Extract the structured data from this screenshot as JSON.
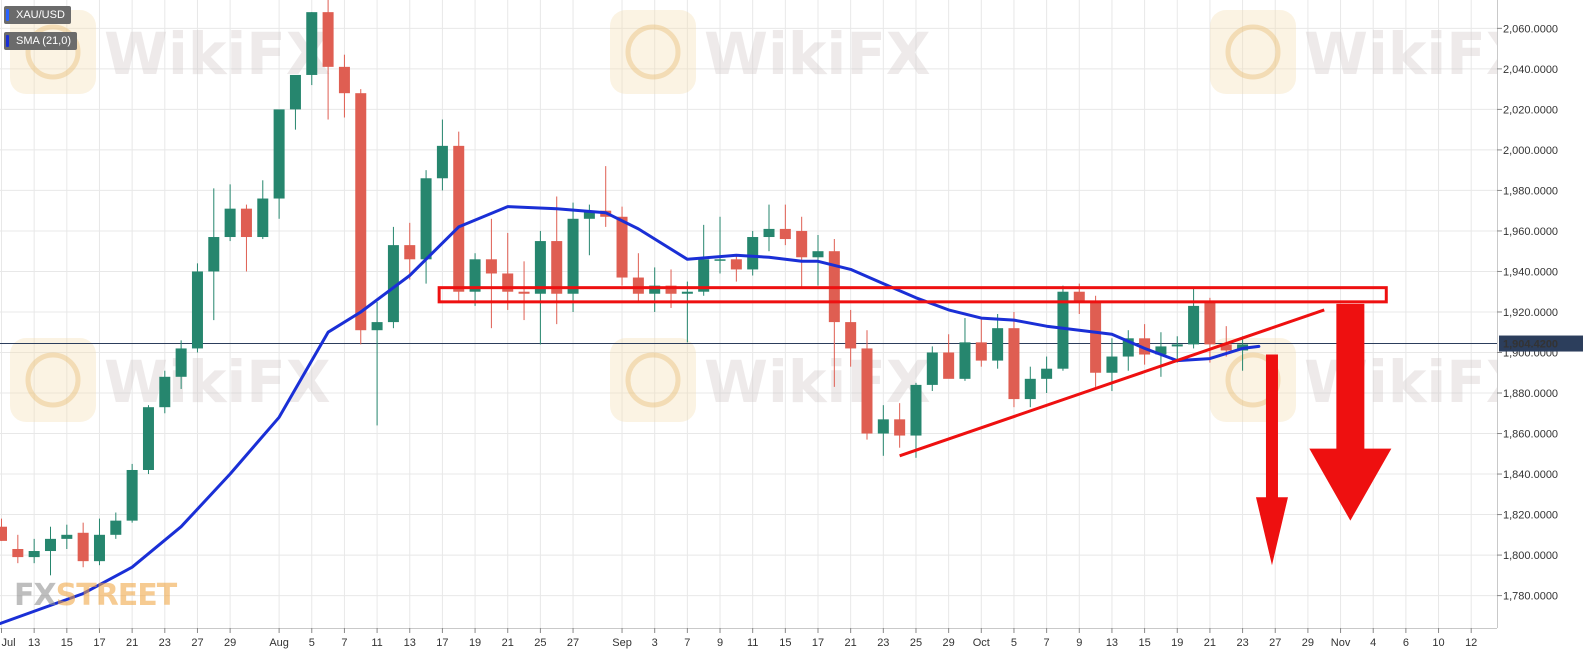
{
  "legend": {
    "symbol": "XAU/USD",
    "indicator": "SMA (21,0)",
    "symbol_color": "#2962ff",
    "indicator_color": "#1a2fd6"
  },
  "watermark": {
    "text": "WikiFX"
  },
  "brand": {
    "part1": "FX",
    "part2": "STREET"
  },
  "colors": {
    "up": "#26866e",
    "down": "#df5e52",
    "sma": "#1a2fd6",
    "annotation": "#ee1010",
    "grid": "#e8e8e8",
    "price_tag": "#2c3e5c"
  },
  "chart_data": {
    "type": "candlestick",
    "symbol": "XAU/USD",
    "ylim": [
      1764,
      2074
    ],
    "y_ticks": [
      "2,060.0000",
      "2,040.0000",
      "2,020.0000",
      "2,000.0000",
      "1,980.0000",
      "1,960.0000",
      "1,940.0000",
      "1,920.0000",
      "1,900.0000",
      "1,880.0000",
      "1,860.0000",
      "1,840.0000",
      "1,820.0000",
      "1,800.0000",
      "1,780.0000"
    ],
    "y_tick_values": [
      2060,
      2040,
      2020,
      2000,
      1980,
      1960,
      1940,
      1920,
      1900,
      1880,
      1860,
      1840,
      1820,
      1800,
      1780
    ],
    "x_tick_labels": [
      "Jul",
      "13",
      "15",
      "17",
      "21",
      "23",
      "27",
      "29",
      "Aug",
      "5",
      "7",
      "11",
      "13",
      "17",
      "19",
      "21",
      "25",
      "27",
      "Sep",
      "3",
      "7",
      "9",
      "11",
      "15",
      "17",
      "21",
      "23",
      "25",
      "29",
      "Oct",
      "5",
      "7",
      "9",
      "13",
      "15",
      "19",
      "21",
      "23",
      "27",
      "29",
      "Nov",
      "4",
      "6",
      "10",
      "12"
    ],
    "x_tick_slots": [
      0,
      2,
      4,
      6,
      8,
      10,
      12,
      14,
      17,
      19,
      21,
      23,
      25,
      27,
      29,
      31,
      33,
      35,
      38,
      40,
      42,
      44,
      46,
      48,
      50,
      52,
      54,
      56,
      58,
      60,
      62,
      64,
      66,
      68,
      70,
      72,
      74,
      76,
      78,
      80,
      82,
      84,
      86,
      88,
      90
    ],
    "last_price": 1904.42,
    "last_price_label": "1,904.4200",
    "candles": [
      {
        "o": 1814,
        "h": 1818,
        "l": 1807,
        "c": 1807
      },
      {
        "o": 1803,
        "h": 1810,
        "l": 1796,
        "c": 1799
      },
      {
        "o": 1799,
        "h": 1808,
        "l": 1796,
        "c": 1802
      },
      {
        "o": 1802,
        "h": 1814,
        "l": 1790,
        "c": 1808
      },
      {
        "o": 1808,
        "h": 1815,
        "l": 1803,
        "c": 1810
      },
      {
        "o": 1811,
        "h": 1816,
        "l": 1794,
        "c": 1797
      },
      {
        "o": 1797,
        "h": 1818,
        "l": 1795,
        "c": 1810
      },
      {
        "o": 1810,
        "h": 1821,
        "l": 1808,
        "c": 1817
      },
      {
        "o": 1817,
        "h": 1845,
        "l": 1816,
        "c": 1842
      },
      {
        "o": 1842,
        "h": 1874,
        "l": 1840,
        "c": 1873
      },
      {
        "o": 1873,
        "h": 1891,
        "l": 1870,
        "c": 1888
      },
      {
        "o": 1888,
        "h": 1906,
        "l": 1882,
        "c": 1902
      },
      {
        "o": 1902,
        "h": 1944,
        "l": 1900,
        "c": 1940
      },
      {
        "o": 1940,
        "h": 1981,
        "l": 1916,
        "c": 1957
      },
      {
        "o": 1957,
        "h": 1983,
        "l": 1955,
        "c": 1971
      },
      {
        "o": 1971,
        "h": 1973,
        "l": 1940,
        "c": 1957
      },
      {
        "o": 1957,
        "h": 1985,
        "l": 1956,
        "c": 1976
      },
      {
        "o": 1976,
        "h": 2019,
        "l": 1966,
        "c": 2020
      },
      {
        "o": 2020,
        "h": 2036,
        "l": 2010,
        "c": 2037
      },
      {
        "o": 2037,
        "h": 2068,
        "l": 2032,
        "c": 2068
      },
      {
        "o": 2068,
        "h": 2075,
        "l": 2015,
        "c": 2041
      },
      {
        "o": 2041,
        "h": 2047,
        "l": 2016,
        "c": 2028
      },
      {
        "o": 2028,
        "h": 2030,
        "l": 1904,
        "c": 1911
      },
      {
        "o": 1911,
        "h": 1925,
        "l": 1864,
        "c": 1915
      },
      {
        "o": 1915,
        "h": 1962,
        "l": 1912,
        "c": 1953
      },
      {
        "o": 1953,
        "h": 1964,
        "l": 1936,
        "c": 1946
      },
      {
        "o": 1946,
        "h": 1990,
        "l": 1934,
        "c": 1986
      },
      {
        "o": 1986,
        "h": 2015,
        "l": 1980,
        "c": 2002
      },
      {
        "o": 2002,
        "h": 2009,
        "l": 1925,
        "c": 1930
      },
      {
        "o": 1930,
        "h": 1949,
        "l": 1923,
        "c": 1946
      },
      {
        "o": 1946,
        "h": 1966,
        "l": 1912,
        "c": 1939
      },
      {
        "o": 1939,
        "h": 1959,
        "l": 1921,
        "c": 1930
      },
      {
        "o": 1930,
        "h": 1945,
        "l": 1916,
        "c": 1929
      },
      {
        "o": 1929,
        "h": 1960,
        "l": 1904,
        "c": 1955
      },
      {
        "o": 1955,
        "h": 1977,
        "l": 1914,
        "c": 1929
      },
      {
        "o": 1929,
        "h": 1974,
        "l": 1920,
        "c": 1966
      },
      {
        "o": 1966,
        "h": 1973,
        "l": 1948,
        "c": 1970
      },
      {
        "o": 1970,
        "h": 1992,
        "l": 1962,
        "c": 1967
      },
      {
        "o": 1967,
        "h": 1972,
        "l": 1933,
        "c": 1937
      },
      {
        "o": 1937,
        "h": 1949,
        "l": 1925,
        "c": 1929
      },
      {
        "o": 1929,
        "h": 1942,
        "l": 1920,
        "c": 1933
      },
      {
        "o": 1933,
        "h": 1941,
        "l": 1922,
        "c": 1929
      },
      {
        "o": 1929,
        "h": 1935,
        "l": 1905,
        "c": 1930
      },
      {
        "o": 1930,
        "h": 1963,
        "l": 1928,
        "c": 1946
      },
      {
        "o": 1946,
        "h": 1967,
        "l": 1939,
        "c": 1946
      },
      {
        "o": 1946,
        "h": 1948,
        "l": 1935,
        "c": 1941
      },
      {
        "o": 1941,
        "h": 1960,
        "l": 1938,
        "c": 1957
      },
      {
        "o": 1957,
        "h": 1973,
        "l": 1950,
        "c": 1961
      },
      {
        "o": 1961,
        "h": 1973,
        "l": 1953,
        "c": 1956
      },
      {
        "o": 1960,
        "h": 1967,
        "l": 1932,
        "c": 1947
      },
      {
        "o": 1947,
        "h": 1958,
        "l": 1933,
        "c": 1950
      },
      {
        "o": 1950,
        "h": 1956,
        "l": 1883,
        "c": 1915
      },
      {
        "o": 1915,
        "h": 1921,
        "l": 1893,
        "c": 1902
      },
      {
        "o": 1902,
        "h": 1911,
        "l": 1857,
        "c": 1860
      },
      {
        "o": 1860,
        "h": 1874,
        "l": 1849,
        "c": 1867
      },
      {
        "o": 1867,
        "h": 1875,
        "l": 1853,
        "c": 1859
      },
      {
        "o": 1859,
        "h": 1885,
        "l": 1848,
        "c": 1884
      },
      {
        "o": 1884,
        "h": 1903,
        "l": 1881,
        "c": 1900
      },
      {
        "o": 1900,
        "h": 1909,
        "l": 1888,
        "c": 1887
      },
      {
        "o": 1887,
        "h": 1917,
        "l": 1886,
        "c": 1905
      },
      {
        "o": 1905,
        "h": 1917,
        "l": 1893,
        "c": 1896
      },
      {
        "o": 1896,
        "h": 1919,
        "l": 1892,
        "c": 1912
      },
      {
        "o": 1912,
        "h": 1920,
        "l": 1873,
        "c": 1877
      },
      {
        "o": 1877,
        "h": 1893,
        "l": 1873,
        "c": 1887
      },
      {
        "o": 1887,
        "h": 1898,
        "l": 1880,
        "c": 1892
      },
      {
        "o": 1892,
        "h": 1933,
        "l": 1891,
        "c": 1930
      },
      {
        "o": 1930,
        "h": 1934,
        "l": 1919,
        "c": 1925
      },
      {
        "o": 1925,
        "h": 1928,
        "l": 1883,
        "c": 1890
      },
      {
        "o": 1890,
        "h": 1907,
        "l": 1881,
        "c": 1898
      },
      {
        "o": 1898,
        "h": 1911,
        "l": 1891,
        "c": 1907
      },
      {
        "o": 1907,
        "h": 1914,
        "l": 1894,
        "c": 1899
      },
      {
        "o": 1899,
        "h": 1910,
        "l": 1888,
        "c": 1903
      },
      {
        "o": 1903,
        "h": 1908,
        "l": 1895,
        "c": 1904
      },
      {
        "o": 1904,
        "h": 1932,
        "l": 1902,
        "c": 1923
      },
      {
        "o": 1925,
        "h": 1927,
        "l": 1895,
        "c": 1904
      },
      {
        "o": 1904,
        "h": 1913,
        "l": 1898,
        "c": 1901
      },
      {
        "o": 1901,
        "h": 1908,
        "l": 1891,
        "c": 1904
      }
    ],
    "sma": [
      [
        -0.5,
        1765
      ],
      [
        5,
        1781
      ],
      [
        8,
        1794
      ],
      [
        11,
        1814
      ],
      [
        14,
        1840
      ],
      [
        17,
        1868
      ],
      [
        20,
        1910
      ],
      [
        22,
        1920
      ],
      [
        25,
        1938
      ],
      [
        28,
        1962
      ],
      [
        31,
        1972
      ],
      [
        34,
        1971
      ],
      [
        37,
        1969
      ],
      [
        39,
        1961
      ],
      [
        42,
        1946
      ],
      [
        45,
        1948
      ],
      [
        47,
        1947
      ],
      [
        49,
        1945
      ],
      [
        50,
        1945
      ],
      [
        52,
        1941
      ],
      [
        54,
        1934
      ],
      [
        56,
        1927
      ],
      [
        58,
        1921
      ],
      [
        60,
        1917
      ],
      [
        62,
        1916
      ],
      [
        64,
        1913
      ],
      [
        66,
        1911
      ],
      [
        68,
        1909
      ],
      [
        70,
        1902
      ],
      [
        72,
        1896
      ],
      [
        74,
        1897
      ],
      [
        76,
        1902
      ],
      [
        77,
        1903
      ]
    ],
    "annotations": {
      "resistance_box": [
        1925,
        1932
      ],
      "support_trendline": [
        [
          55,
          1849
        ],
        [
          81,
          1921
        ]
      ],
      "small_arrow": {
        "slot": 77.8,
        "from": 1899,
        "to": 1795
      },
      "large_arrow": {
        "slot": 82.6,
        "from": 1924,
        "to": 1817
      }
    }
  }
}
